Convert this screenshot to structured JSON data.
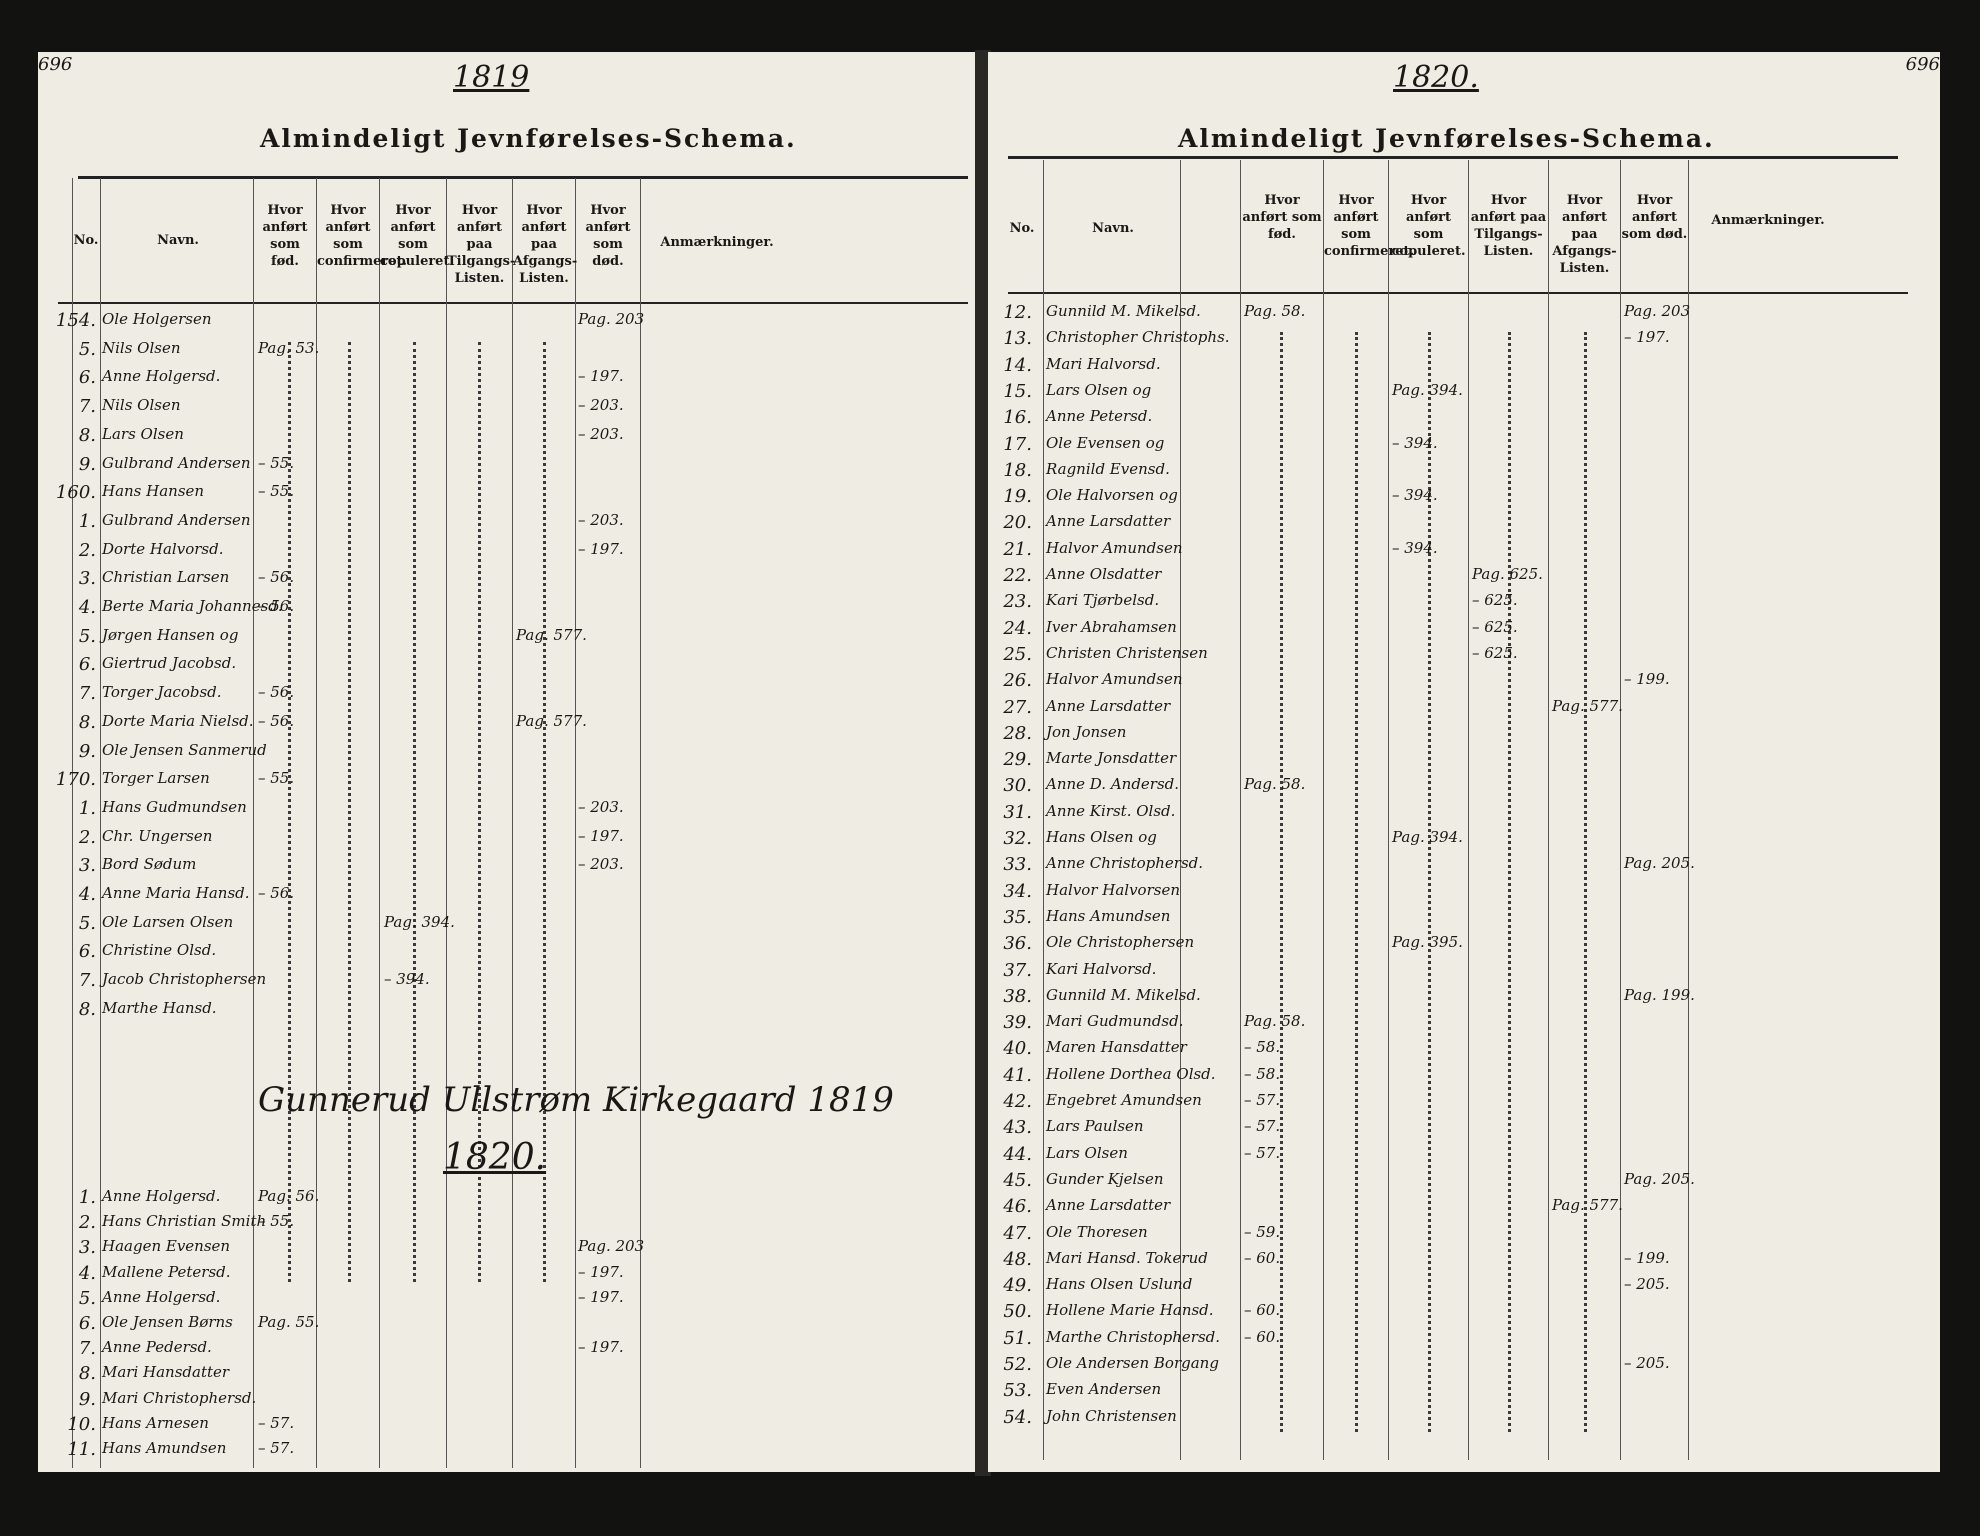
{
  "left": {
    "page_number": "696",
    "year": "1819",
    "title": "Almindeligt Jevnførelses-Schema.",
    "headers": [
      "No.",
      "Navn.",
      "Hvor anført som fød.",
      "Hvor anført som confirmeret.",
      "Hvor anført som copuleret.",
      "Hvor anført paa Tilgangs-Listen.",
      "Hvor anført paa Afgangs-Listen.",
      "Hvor anført som død.",
      "Anmærkninger."
    ],
    "rows": [
      {
        "no": "154.",
        "name": "Ole Holgersen",
        "fod": "",
        "conf": "",
        "cop": "",
        "til": "",
        "afg": "",
        "dod": "Pag. 203"
      },
      {
        "no": "5.",
        "name": "Nils Olsen",
        "fod": "Pag. 53.",
        "conf": "",
        "cop": "",
        "til": "",
        "afg": "",
        "dod": ""
      },
      {
        "no": "6.",
        "name": "Anne Holgersd.",
        "fod": "",
        "conf": "",
        "cop": "",
        "til": "",
        "afg": "",
        "dod": "– 197."
      },
      {
        "no": "7.",
        "name": "Nils Olsen",
        "fod": "",
        "conf": "",
        "cop": "",
        "til": "",
        "afg": "",
        "dod": "– 203."
      },
      {
        "no": "8.",
        "name": "Lars Olsen",
        "fod": "",
        "conf": "",
        "cop": "",
        "til": "",
        "afg": "",
        "dod": "– 203."
      },
      {
        "no": "9.",
        "name": "Gulbrand Andersen",
        "fod": "– 55.",
        "conf": "",
        "cop": "",
        "til": "",
        "afg": "",
        "dod": ""
      },
      {
        "no": "160.",
        "name": "Hans Hansen",
        "fod": "– 55.",
        "conf": "",
        "cop": "",
        "til": "",
        "afg": "",
        "dod": ""
      },
      {
        "no": "1.",
        "name": "Gulbrand Andersen",
        "fod": "",
        "conf": "",
        "cop": "",
        "til": "",
        "afg": "",
        "dod": "– 203."
      },
      {
        "no": "2.",
        "name": "Dorte Halvorsd.",
        "fod": "",
        "conf": "",
        "cop": "",
        "til": "",
        "afg": "",
        "dod": "– 197."
      },
      {
        "no": "3.",
        "name": "Christian Larsen",
        "fod": "– 56.",
        "conf": "",
        "cop": "",
        "til": "",
        "afg": "",
        "dod": ""
      },
      {
        "no": "4.",
        "name": "Berte Maria Johannesd.",
        "fod": "– 56.",
        "conf": "",
        "cop": "",
        "til": "",
        "afg": "",
        "dod": ""
      },
      {
        "no": "5.",
        "name": "Jørgen Hansen og",
        "fod": "",
        "conf": "",
        "cop": "",
        "til": "",
        "afg": "Pag. 577.",
        "dod": ""
      },
      {
        "no": "6.",
        "name": "Giertrud Jacobsd.",
        "fod": "",
        "conf": "",
        "cop": "",
        "til": "",
        "afg": "",
        "dod": ""
      },
      {
        "no": "7.",
        "name": "Torger Jacobsd.",
        "fod": "– 56.",
        "conf": "",
        "cop": "",
        "til": "",
        "afg": "",
        "dod": ""
      },
      {
        "no": "8.",
        "name": "Dorte Maria Nielsd.",
        "fod": "– 56.",
        "conf": "",
        "cop": "",
        "til": "",
        "afg": "Pag. 577.",
        "dod": ""
      },
      {
        "no": "9.",
        "name": "Ole Jensen Sanmerud",
        "fod": "",
        "conf": "",
        "cop": "",
        "til": "",
        "afg": "",
        "dod": ""
      },
      {
        "no": "170.",
        "name": "Torger Larsen",
        "fod": "– 55.",
        "conf": "",
        "cop": "",
        "til": "",
        "afg": "",
        "dod": ""
      },
      {
        "no": "1.",
        "name": "Hans Gudmundsen",
        "fod": "",
        "conf": "",
        "cop": "",
        "til": "",
        "afg": "",
        "dod": "– 203."
      },
      {
        "no": "2.",
        "name": "Chr. Ungersen",
        "fod": "",
        "conf": "",
        "cop": "",
        "til": "",
        "afg": "",
        "dod": "– 197."
      },
      {
        "no": "3.",
        "name": "Bord Sødum",
        "fod": "",
        "conf": "",
        "cop": "",
        "til": "",
        "afg": "",
        "dod": "– 203."
      },
      {
        "no": "4.",
        "name": "Anne Maria Hansd.",
        "fod": "– 56.",
        "conf": "",
        "cop": "",
        "til": "",
        "afg": "",
        "dod": ""
      },
      {
        "no": "5.",
        "name": "Ole Larsen Olsen",
        "fod": "",
        "conf": "",
        "cop": "Pag. 394.",
        "til": "",
        "afg": "",
        "dod": ""
      },
      {
        "no": "6.",
        "name": "Christine Olsd.",
        "fod": "",
        "conf": "",
        "cop": "",
        "til": "",
        "afg": "",
        "dod": ""
      },
      {
        "no": "7.",
        "name": "Jacob Christophersen",
        "fod": "",
        "conf": "",
        "cop": "– 394.",
        "til": "",
        "afg": "",
        "dod": ""
      },
      {
        "no": "8.",
        "name": "Marthe Hansd.",
        "fod": "",
        "conf": "",
        "cop": "",
        "til": "",
        "afg": "",
        "dod": ""
      }
    ],
    "closing_note": "Gunnerud Ullstrøm Kirkegaard 1819",
    "year2": "1820.",
    "rows2": [
      {
        "no": "1.",
        "name": "Anne Holgersd.",
        "fod": "Pag. 56.",
        "cop": "",
        "dod": ""
      },
      {
        "no": "2.",
        "name": "Hans Christian Smith",
        "fod": "– 55.",
        "cop": "",
        "dod": ""
      },
      {
        "no": "3.",
        "name": "Haagen Evensen",
        "fod": "",
        "cop": "",
        "dod": "Pag. 203"
      },
      {
        "no": "4.",
        "name": "Mallene Petersd.",
        "fod": "",
        "cop": "",
        "dod": "– 197."
      },
      {
        "no": "5.",
        "name": "Anne Holgersd.",
        "fod": "",
        "cop": "",
        "dod": "– 197."
      },
      {
        "no": "6.",
        "name": "Ole Jensen Børns",
        "fod": "Pag. 55.",
        "cop": "",
        "dod": ""
      },
      {
        "no": "7.",
        "name": "Anne Pedersd.",
        "fod": "",
        "cop": "",
        "dod": "– 197."
      },
      {
        "no": "8.",
        "name": "Mari Hansdatter",
        "fod": "",
        "cop": "",
        "dod": ""
      },
      {
        "no": "9.",
        "name": "Mari Christophersd.",
        "fod": "",
        "cop": "",
        "dod": ""
      },
      {
        "no": "10.",
        "name": "Hans Arnesen",
        "fod": "– 57.",
        "cop": "",
        "dod": ""
      },
      {
        "no": "11.",
        "name": "Hans Amundsen",
        "fod": "– 57.",
        "cop": "",
        "dod": ""
      }
    ]
  },
  "right": {
    "page_number": "696",
    "year": "1820.",
    "title": "Almindeligt Jevnførelses-Schema.",
    "headers": [
      "No.",
      "Navn.",
      "Hvor anført som fød.",
      "Hvor anført som confirmeret.",
      "Hvor anført som copuleret.",
      "Hvor anført paa Tilgangs-Listen.",
      "Hvor anført paa Afgangs-Listen.",
      "Hvor anført som død.",
      "Anmærkninger."
    ],
    "rows": [
      {
        "no": "12.",
        "name": "Gunnild M. Mikelsd.",
        "fod": "Pag. 58.",
        "cop": "",
        "til": "",
        "afg": "",
        "dod": "Pag. 203"
      },
      {
        "no": "13.",
        "name": "Christopher Christophs.",
        "fod": "",
        "cop": "",
        "til": "",
        "afg": "",
        "dod": "– 197."
      },
      {
        "no": "14.",
        "name": "Mari Halvorsd.",
        "fod": "",
        "cop": "",
        "til": "",
        "afg": "",
        "dod": ""
      },
      {
        "no": "15.",
        "name": "Lars Olsen og",
        "fod": "",
        "cop": "Pag. 394.",
        "til": "",
        "afg": "",
        "dod": ""
      },
      {
        "no": "16.",
        "name": "Anne Petersd.",
        "fod": "",
        "cop": "",
        "til": "",
        "afg": "",
        "dod": ""
      },
      {
        "no": "17.",
        "name": "Ole Evensen og",
        "fod": "",
        "cop": "– 394.",
        "til": "",
        "afg": "",
        "dod": ""
      },
      {
        "no": "18.",
        "name": "Ragnild Evensd.",
        "fod": "",
        "cop": "",
        "til": "",
        "afg": "",
        "dod": ""
      },
      {
        "no": "19.",
        "name": "Ole Halvorsen og",
        "fod": "",
        "cop": "– 394.",
        "til": "",
        "afg": "",
        "dod": ""
      },
      {
        "no": "20.",
        "name": "Anne Larsdatter",
        "fod": "",
        "cop": "",
        "til": "",
        "afg": "",
        "dod": ""
      },
      {
        "no": "21.",
        "name": "Halvor Amundsen",
        "fod": "",
        "cop": "– 394.",
        "til": "",
        "afg": "",
        "dod": ""
      },
      {
        "no": "22.",
        "name": "Anne Olsdatter",
        "fod": "",
        "cop": "",
        "til": "Pag. 625.",
        "afg": "",
        "dod": ""
      },
      {
        "no": "23.",
        "name": "Kari Tjørbelsd.",
        "fod": "",
        "cop": "",
        "til": "– 625.",
        "afg": "",
        "dod": ""
      },
      {
        "no": "24.",
        "name": "Iver Abrahamsen",
        "fod": "",
        "cop": "",
        "til": "– 625.",
        "afg": "",
        "dod": ""
      },
      {
        "no": "25.",
        "name": "Christen Christensen",
        "fod": "",
        "cop": "",
        "til": "– 625.",
        "afg": "",
        "dod": ""
      },
      {
        "no": "26.",
        "name": "Halvor Amundsen",
        "fod": "",
        "cop": "",
        "til": "",
        "afg": "",
        "dod": "– 199."
      },
      {
        "no": "27.",
        "name": "Anne Larsdatter",
        "fod": "",
        "cop": "",
        "til": "",
        "afg": "Pag. 577.",
        "dod": ""
      },
      {
        "no": "28.",
        "name": "Jon Jonsen",
        "fod": "",
        "cop": "",
        "til": "",
        "afg": "",
        "dod": ""
      },
      {
        "no": "29.",
        "name": "Marte Jonsdatter",
        "fod": "",
        "cop": "",
        "til": "",
        "afg": "",
        "dod": ""
      },
      {
        "no": "30.",
        "name": "Anne D. Andersd.",
        "fod": "Pag. 58.",
        "cop": "",
        "til": "",
        "afg": "",
        "dod": ""
      },
      {
        "no": "31.",
        "name": "Anne Kirst. Olsd.",
        "fod": "",
        "cop": "",
        "til": "",
        "afg": "",
        "dod": ""
      },
      {
        "no": "32.",
        "name": "Hans Olsen og",
        "fod": "",
        "cop": "Pag. 394.",
        "til": "",
        "afg": "",
        "dod": ""
      },
      {
        "no": "33.",
        "name": "Anne Christophersd.",
        "fod": "",
        "cop": "",
        "til": "",
        "afg": "",
        "dod": "Pag. 205."
      },
      {
        "no": "34.",
        "name": "Halvor Halvorsen",
        "fod": "",
        "cop": "",
        "til": "",
        "afg": "",
        "dod": ""
      },
      {
        "no": "35.",
        "name": "Hans Amundsen",
        "fod": "",
        "cop": "",
        "til": "",
        "afg": "",
        "dod": ""
      },
      {
        "no": "36.",
        "name": "Ole Christophersen",
        "fod": "",
        "cop": "Pag. 395.",
        "til": "",
        "afg": "",
        "dod": ""
      },
      {
        "no": "37.",
        "name": "Kari Halvorsd.",
        "fod": "",
        "cop": "",
        "til": "",
        "afg": "",
        "dod": ""
      },
      {
        "no": "38.",
        "name": "Gunnild M. Mikelsd.",
        "fod": "",
        "cop": "",
        "til": "",
        "afg": "",
        "dod": "Pag. 199."
      },
      {
        "no": "39.",
        "name": "Mari Gudmundsd.",
        "fod": "Pag. 58.",
        "cop": "",
        "til": "",
        "afg": "",
        "dod": ""
      },
      {
        "no": "40.",
        "name": "Maren Hansdatter",
        "fod": "– 58.",
        "cop": "",
        "til": "",
        "afg": "",
        "dod": ""
      },
      {
        "no": "41.",
        "name": "Hollene Dorthea Olsd.",
        "fod": "– 58.",
        "cop": "",
        "til": "",
        "afg": "",
        "dod": ""
      },
      {
        "no": "42.",
        "name": "Engebret Amundsen",
        "fod": "– 57.",
        "cop": "",
        "til": "",
        "afg": "",
        "dod": ""
      },
      {
        "no": "43.",
        "name": "Lars Paulsen",
        "fod": "– 57.",
        "cop": "",
        "til": "",
        "afg": "",
        "dod": ""
      },
      {
        "no": "44.",
        "name": "Lars Olsen",
        "fod": "– 57.",
        "cop": "",
        "til": "",
        "afg": "",
        "dod": ""
      },
      {
        "no": "45.",
        "name": "Gunder Kjelsen",
        "fod": "",
        "cop": "",
        "til": "",
        "afg": "",
        "dod": "Pag. 205."
      },
      {
        "no": "46.",
        "name": "Anne Larsdatter",
        "fod": "",
        "cop": "",
        "til": "",
        "afg": "Pag. 577.",
        "dod": ""
      },
      {
        "no": "47.",
        "name": "Ole Thoresen",
        "fod": "– 59.",
        "cop": "",
        "til": "",
        "afg": "",
        "dod": ""
      },
      {
        "no": "48.",
        "name": "Mari Hansd. Tokerud",
        "fod": "– 60.",
        "cop": "",
        "til": "",
        "afg": "",
        "dod": "– 199."
      },
      {
        "no": "49.",
        "name": "Hans Olsen Uslund",
        "fod": "",
        "cop": "",
        "til": "",
        "afg": "",
        "dod": "– 205."
      },
      {
        "no": "50.",
        "name": "Hollene Marie Hansd.",
        "fod": "– 60.",
        "cop": "",
        "til": "",
        "afg": "",
        "dod": ""
      },
      {
        "no": "51.",
        "name": "Marthe Christophersd.",
        "fod": "– 60.",
        "cop": "",
        "til": "",
        "afg": "",
        "dod": ""
      },
      {
        "no": "52.",
        "name": "Ole Andersen Borgang",
        "fod": "",
        "cop": "",
        "til": "",
        "afg": "",
        "dod": "– 205."
      },
      {
        "no": "53.",
        "name": "Even Andersen",
        "fod": "",
        "cop": "",
        "til": "",
        "afg": "",
        "dod": ""
      },
      {
        "no": "54.",
        "name": "John Christensen",
        "fod": "",
        "cop": "",
        "til": "",
        "afg": "",
        "dod": ""
      }
    ]
  }
}
